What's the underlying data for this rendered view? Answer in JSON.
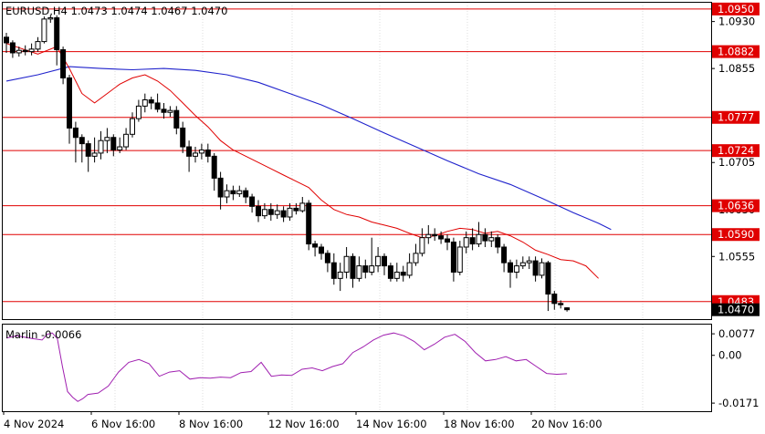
{
  "header": {
    "symbol_line": "EURUSD,H4  1.0473 1.0474 1.0467 1.0470"
  },
  "indicator": {
    "label": "Marlin -0.0066"
  },
  "colors": {
    "background": "#ffffff",
    "bull_candle_border": "#000000",
    "bear_candle": "#000000",
    "level_line": "#e00000",
    "level_badge": "#e00000",
    "price_badge": "#000000",
    "ma_fast": "#e00000",
    "ma_slow": "#1f22cc",
    "oscillator": "#a020b0",
    "grid": "#dddddd"
  },
  "chart_data": [
    {
      "type": "candlestick",
      "title": "EURUSD,H4",
      "ohlc_readout": {
        "open": 1.0473,
        "high": 1.0474,
        "low": 1.0467,
        "close": 1.047
      },
      "y_axis_ticks": [
        1.093,
        1.0855,
        1.078,
        1.0705,
        1.063,
        1.0555,
        1.047
      ],
      "ylim": [
        1.0455,
        1.096
      ],
      "current_price": "1.0470",
      "horizontal_levels": [
        "1.0950",
        "1.0882",
        "1.0777",
        "1.0724",
        "1.0636",
        "1.0590",
        "1.0483"
      ],
      "x_axis_labels": [
        "4 Nov 2024",
        "6 Nov 16:00",
        "8 Nov 16:00",
        "12 Nov 16:00",
        "14 Nov 16:00",
        "18 Nov 16:00",
        "20 Nov 16:00"
      ],
      "candles": [
        [
          1.0905,
          1.0896,
          1.0912,
          1.088
        ],
        [
          1.0896,
          1.088,
          1.09,
          1.0872
        ],
        [
          1.088,
          1.0884,
          1.089,
          1.0874
        ],
        [
          1.0884,
          1.0882,
          1.0892,
          1.0876
        ],
        [
          1.0882,
          1.0886,
          1.0895,
          1.0876
        ],
        [
          1.0886,
          1.0898,
          1.0905,
          1.0882
        ],
        [
          1.0898,
          1.0934,
          1.0938,
          1.0895
        ],
        [
          1.0934,
          1.0936,
          1.094,
          1.0928
        ],
        [
          1.0936,
          1.0885,
          1.094,
          1.086
        ],
        [
          1.0885,
          1.084,
          1.089,
          1.083
        ],
        [
          1.084,
          1.076,
          1.0845,
          1.0735
        ],
        [
          1.076,
          1.0745,
          1.077,
          1.0705
        ],
        [
          1.0745,
          1.0735,
          1.075,
          1.0705
        ],
        [
          1.0735,
          1.0715,
          1.074,
          1.069
        ],
        [
          1.0715,
          1.072,
          1.0745,
          1.0705
        ],
        [
          1.072,
          1.074,
          1.0755,
          1.071
        ],
        [
          1.074,
          1.0745,
          1.076,
          1.072
        ],
        [
          1.0745,
          1.0725,
          1.075,
          1.0715
        ],
        [
          1.0725,
          1.073,
          1.0745,
          1.072
        ],
        [
          1.073,
          1.075,
          1.076,
          1.0725
        ],
        [
          1.075,
          1.0775,
          1.0785,
          1.0745
        ],
        [
          1.0775,
          1.0795,
          1.0805,
          1.077
        ],
        [
          1.0795,
          1.0805,
          1.0815,
          1.0785
        ],
        [
          1.0805,
          1.08,
          1.081,
          1.079
        ],
        [
          1.08,
          1.079,
          1.0815,
          1.0785
        ],
        [
          1.079,
          1.0785,
          1.08,
          1.0775
        ],
        [
          1.0785,
          1.0788,
          1.0795,
          1.0778
        ],
        [
          1.0788,
          1.076,
          1.0795,
          1.075
        ],
        [
          1.076,
          1.073,
          1.077,
          1.072
        ],
        [
          1.073,
          1.0715,
          1.074,
          1.069
        ],
        [
          1.0715,
          1.072,
          1.073,
          1.0705
        ],
        [
          1.072,
          1.0725,
          1.0735,
          1.071
        ],
        [
          1.0725,
          1.0715,
          1.0735,
          1.0705
        ],
        [
          1.0715,
          1.068,
          1.072,
          1.066
        ],
        [
          1.068,
          1.065,
          1.069,
          1.063
        ],
        [
          1.065,
          1.066,
          1.067,
          1.064
        ],
        [
          1.066,
          1.0655,
          1.0668,
          1.0645
        ],
        [
          1.0655,
          1.066,
          1.0668,
          1.065
        ],
        [
          1.066,
          1.065,
          1.0665,
          1.064
        ],
        [
          1.065,
          1.0635,
          1.0655,
          1.0625
        ],
        [
          1.0635,
          1.062,
          1.0645,
          1.061
        ],
        [
          1.062,
          1.063,
          1.064,
          1.0615
        ],
        [
          1.063,
          1.0622,
          1.064,
          1.0612
        ],
        [
          1.0622,
          1.0628,
          1.0638,
          1.0615
        ],
        [
          1.0628,
          1.0618,
          1.0635,
          1.061
        ],
        [
          1.0618,
          1.0632,
          1.064,
          1.0612
        ],
        [
          1.0632,
          1.0628,
          1.064,
          1.0622
        ],
        [
          1.0628,
          1.064,
          1.065,
          1.0625
        ],
        [
          1.064,
          1.0575,
          1.0645,
          1.0565
        ],
        [
          1.0575,
          1.057,
          1.058,
          1.0555
        ],
        [
          1.057,
          1.056,
          1.0575,
          1.055
        ],
        [
          1.056,
          1.0545,
          1.0565,
          1.053
        ],
        [
          1.0545,
          1.052,
          1.056,
          1.051
        ],
        [
          1.052,
          1.053,
          1.0545,
          1.05
        ],
        [
          1.053,
          1.0555,
          1.057,
          1.052
        ],
        [
          1.0555,
          1.052,
          1.056,
          1.0505
        ],
        [
          1.052,
          1.054,
          1.0555,
          1.0515
        ],
        [
          1.054,
          1.053,
          1.055,
          1.052
        ],
        [
          1.053,
          1.054,
          1.0585,
          1.0525
        ],
        [
          1.054,
          1.0555,
          1.057,
          1.053
        ],
        [
          1.0555,
          1.054,
          1.056,
          1.0525
        ],
        [
          1.054,
          1.052,
          1.0545,
          1.0515
        ],
        [
          1.052,
          1.053,
          1.0545,
          1.0515
        ],
        [
          1.053,
          1.0525,
          1.054,
          1.0515
        ],
        [
          1.0525,
          1.0545,
          1.056,
          1.052
        ],
        [
          1.0545,
          1.056,
          1.0575,
          1.054
        ],
        [
          1.056,
          1.0585,
          1.06,
          1.0555
        ],
        [
          1.0585,
          1.059,
          1.0605,
          1.0575
        ],
        [
          1.059,
          1.0588,
          1.06,
          1.058
        ],
        [
          1.0588,
          1.0583,
          1.0595,
          1.0575
        ],
        [
          1.0583,
          1.0578,
          1.059,
          1.0565
        ],
        [
          1.0578,
          1.053,
          1.0585,
          1.0515
        ],
        [
          1.053,
          1.057,
          1.058,
          1.0525
        ],
        [
          1.057,
          1.0585,
          1.0595,
          1.056
        ],
        [
          1.0585,
          1.0575,
          1.06,
          1.0565
        ],
        [
          1.0575,
          1.059,
          1.061,
          1.057
        ],
        [
          1.059,
          1.058,
          1.06,
          1.057
        ],
        [
          1.058,
          1.0585,
          1.0595,
          1.057
        ],
        [
          1.0585,
          1.057,
          1.059,
          1.056
        ],
        [
          1.057,
          1.0545,
          1.0575,
          1.053
        ],
        [
          1.0545,
          1.053,
          1.055,
          1.0505
        ],
        [
          1.053,
          1.054,
          1.055,
          1.052
        ],
        [
          1.054,
          1.0545,
          1.0555,
          1.0535
        ],
        [
          1.0545,
          1.0548,
          1.0555,
          1.0535
        ],
        [
          1.0548,
          1.0525,
          1.0555,
          1.0515
        ],
        [
          1.0525,
          1.0545,
          1.0552,
          1.052
        ],
        [
          1.0545,
          1.0495,
          1.0548,
          1.0468
        ],
        [
          1.0495,
          1.048,
          1.05,
          1.047
        ],
        [
          1.048,
          1.0478,
          1.0485,
          1.0472
        ],
        [
          1.0473,
          1.047,
          1.0474,
          1.0467
        ]
      ],
      "series": [
        {
          "type": "line",
          "color": "#e00000",
          "values": [
            [
              0,
              1.0895
            ],
            [
              5,
              1.0878
            ],
            [
              8,
              1.089
            ],
            [
              10,
              1.0855
            ],
            [
              12,
              1.0815
            ],
            [
              14,
              1.08
            ],
            [
              16,
              1.0815
            ],
            [
              18,
              1.083
            ],
            [
              20,
              1.084
            ],
            [
              22,
              1.0845
            ],
            [
              24,
              1.0835
            ],
            [
              26,
              1.082
            ],
            [
              28,
              1.08
            ],
            [
              30,
              1.078
            ],
            [
              32,
              1.0762
            ],
            [
              34,
              1.074
            ],
            [
              36,
              1.0725
            ],
            [
              38,
              1.0715
            ],
            [
              40,
              1.0705
            ],
            [
              42,
              1.0695
            ],
            [
              44,
              1.0685
            ],
            [
              46,
              1.0675
            ],
            [
              48,
              1.0665
            ],
            [
              50,
              1.0645
            ],
            [
              52,
              1.063
            ],
            [
              54,
              1.0622
            ],
            [
              56,
              1.0618
            ],
            [
              58,
              1.061
            ],
            [
              60,
              1.0605
            ],
            [
              62,
              1.06
            ],
            [
              64,
              1.0592
            ],
            [
              66,
              1.0585
            ],
            [
              68,
              1.0588
            ],
            [
              70,
              1.0595
            ],
            [
              72,
              1.06
            ],
            [
              74,
              1.0598
            ],
            [
              76,
              1.0592
            ],
            [
              78,
              1.0595
            ],
            [
              80,
              1.0588
            ],
            [
              82,
              1.0578
            ],
            [
              84,
              1.0565
            ],
            [
              86,
              1.0558
            ],
            [
              88,
              1.055
            ],
            [
              90,
              1.0548
            ],
            [
              92,
              1.054
            ],
            [
              94,
              1.052
            ]
          ]
        },
        {
          "type": "line",
          "color": "#1f22cc",
          "values": [
            [
              0,
              1.0835
            ],
            [
              5,
              1.0845
            ],
            [
              10,
              1.0858
            ],
            [
              15,
              1.0855
            ],
            [
              20,
              1.0853
            ],
            [
              25,
              1.0855
            ],
            [
              30,
              1.0852
            ],
            [
              35,
              1.0845
            ],
            [
              40,
              1.0833
            ],
            [
              45,
              1.0815
            ],
            [
              50,
              1.0797
            ],
            [
              55,
              1.0775
            ],
            [
              60,
              1.0752
            ],
            [
              65,
              1.073
            ],
            [
              70,
              1.0708
            ],
            [
              75,
              1.0687
            ],
            [
              80,
              1.067
            ],
            [
              85,
              1.0648
            ],
            [
              90,
              1.0625
            ],
            [
              94,
              1.0608
            ],
            [
              96,
              1.0598
            ]
          ]
        }
      ]
    },
    {
      "type": "line",
      "title": "Marlin -0.0066",
      "y_axis_ticks": [
        "0.0077",
        "0.00",
        "-0.0171"
      ],
      "ylim": [
        -0.02,
        0.011
      ],
      "series": [
        {
          "type": "line",
          "color": "#a020b0",
          "values": [
            [
              0,
              0.0062
            ],
            [
              2,
              0.007
            ],
            [
              5,
              0.006
            ],
            [
              7,
              0.0055
            ],
            [
              8,
              0.0075
            ],
            [
              9,
              0.008
            ],
            [
              10,
              0.006
            ],
            [
              11,
              -0.004
            ],
            [
              12,
              -0.013
            ],
            [
              13,
              -0.015
            ],
            [
              14,
              -0.0165
            ],
            [
              15,
              -0.0155
            ],
            [
              16,
              -0.014
            ],
            [
              18,
              -0.0135
            ],
            [
              20,
              -0.011
            ],
            [
              22,
              -0.006
            ],
            [
              24,
              -0.0025
            ],
            [
              26,
              -0.0015
            ],
            [
              28,
              -0.003
            ],
            [
              30,
              -0.0075
            ],
            [
              32,
              -0.006
            ],
            [
              34,
              -0.0055
            ],
            [
              36,
              -0.0085
            ],
            [
              38,
              -0.008
            ],
            [
              40,
              -0.0082
            ],
            [
              42,
              -0.0078
            ],
            [
              44,
              -0.008
            ],
            [
              46,
              -0.0062
            ],
            [
              48,
              -0.0058
            ],
            [
              50,
              -0.0025
            ],
            [
              52,
              -0.0075
            ],
            [
              54,
              -0.007
            ],
            [
              56,
              -0.0072
            ],
            [
              58,
              -0.005
            ],
            [
              60,
              -0.0045
            ],
            [
              62,
              -0.0055
            ],
            [
              64,
              -0.004
            ],
            [
              66,
              -0.003
            ],
            [
              68,
              0.001
            ],
            [
              70,
              0.003
            ],
            [
              72,
              0.0055
            ],
            [
              74,
              0.0072
            ],
            [
              76,
              0.008
            ],
            [
              78,
              0.007
            ],
            [
              80,
              0.005
            ],
            [
              82,
              0.002
            ],
            [
              84,
              0.004
            ],
            [
              86,
              0.0065
            ],
            [
              88,
              0.0075
            ],
            [
              90,
              0.005
            ],
            [
              92,
              0.001
            ],
            [
              94,
              -0.002
            ],
            [
              96,
              -0.0015
            ],
            [
              98,
              -0.0005
            ],
            [
              100,
              -0.002
            ],
            [
              102,
              -0.0015
            ],
            [
              104,
              -0.004
            ],
            [
              106,
              -0.0065
            ],
            [
              108,
              -0.0068
            ],
            [
              110,
              -0.0066
            ]
          ]
        }
      ]
    }
  ]
}
